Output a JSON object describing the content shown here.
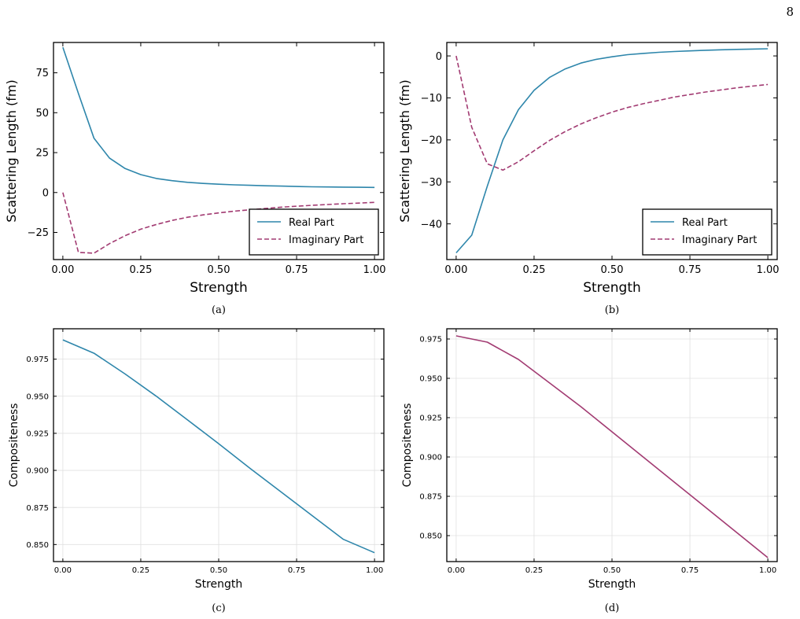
{
  "page_number": "8",
  "colors": {
    "real": "#2e86ab",
    "imag": "#a23b72",
    "grid": "#e0e0e0",
    "frame": "#000000"
  },
  "chart_data": [
    {
      "panel": "a",
      "caption": "(a)",
      "type": "line",
      "xlabel": "Strength",
      "ylabel": "Scattering Length (fm)",
      "xlim": [
        -0.03,
        1.03
      ],
      "ylim": [
        -42,
        94
      ],
      "xticks": [
        0.0,
        0.25,
        0.5,
        0.75,
        1.0
      ],
      "xtick_labels": [
        "0.00",
        "0.25",
        "0.50",
        "0.75",
        "1.00"
      ],
      "yticks": [
        -25,
        0,
        25,
        50,
        75
      ],
      "ytick_labels": [
        "−25",
        "0",
        "25",
        "50",
        "75"
      ],
      "grid": false,
      "legend": "lower-right",
      "x": [
        0.0,
        0.05,
        0.1,
        0.15,
        0.2,
        0.25,
        0.3,
        0.35,
        0.4,
        0.45,
        0.5,
        0.55,
        0.6,
        0.65,
        0.7,
        0.75,
        0.8,
        0.85,
        0.9,
        0.95,
        1.0
      ],
      "series": [
        {
          "name": "Real Part",
          "style": "solid",
          "color": "#2e86ab",
          "values": [
            91,
            62,
            34,
            21.5,
            15,
            11.2,
            8.8,
            7.4,
            6.4,
            5.7,
            5.2,
            4.8,
            4.5,
            4.2,
            4.0,
            3.8,
            3.6,
            3.5,
            3.4,
            3.3,
            3.2
          ]
        },
        {
          "name": "Imaginary Part",
          "style": "dashed",
          "color": "#a23b72",
          "values": [
            0,
            -37.5,
            -38,
            -32,
            -27,
            -23,
            -20,
            -17.5,
            -15.5,
            -14,
            -12.8,
            -11.7,
            -10.8,
            -10,
            -9.2,
            -8.6,
            -8.0,
            -7.5,
            -7.0,
            -6.6,
            -6.2
          ]
        }
      ]
    },
    {
      "panel": "b",
      "caption": "(b)",
      "type": "line",
      "xlabel": "Strength",
      "ylabel": "Scattering Length (fm)",
      "xlim": [
        -0.03,
        1.03
      ],
      "ylim": [
        -48.5,
        3.2
      ],
      "xticks": [
        0.0,
        0.25,
        0.5,
        0.75,
        1.0
      ],
      "xtick_labels": [
        "0.00",
        "0.25",
        "0.50",
        "0.75",
        "1.00"
      ],
      "yticks": [
        -40,
        -30,
        -20,
        -10,
        0
      ],
      "ytick_labels": [
        "−40",
        "−30",
        "−20",
        "−10",
        "0"
      ],
      "grid": false,
      "legend": "lower-right",
      "x": [
        0.0,
        0.05,
        0.1,
        0.15,
        0.2,
        0.25,
        0.3,
        0.35,
        0.4,
        0.45,
        0.5,
        0.55,
        0.6,
        0.65,
        0.7,
        0.75,
        0.8,
        0.85,
        0.9,
        0.95,
        1.0
      ],
      "series": [
        {
          "name": "Real Part",
          "style": "solid",
          "color": "#2e86ab",
          "values": [
            -46.9,
            -42.7,
            -31,
            -20,
            -12.8,
            -8.2,
            -5.1,
            -3.1,
            -1.7,
            -0.8,
            -0.2,
            0.3,
            0.6,
            0.85,
            1.05,
            1.2,
            1.35,
            1.45,
            1.55,
            1.62,
            1.7
          ]
        },
        {
          "name": "Imaginary Part",
          "style": "dashed",
          "color": "#a23b72",
          "values": [
            0,
            -17,
            -25.7,
            -27.2,
            -25.2,
            -22.6,
            -20.1,
            -18,
            -16.2,
            -14.7,
            -13.4,
            -12.3,
            -11.4,
            -10.6,
            -9.8,
            -9.2,
            -8.6,
            -8.1,
            -7.6,
            -7.2,
            -6.8
          ]
        }
      ]
    },
    {
      "panel": "c",
      "caption": "(c)",
      "type": "line",
      "xlabel": "Strength",
      "ylabel": "Compositeness",
      "xlim": [
        -0.03,
        1.03
      ],
      "ylim": [
        0.8385,
        0.9955
      ],
      "xticks": [
        0.0,
        0.25,
        0.5,
        0.75,
        1.0
      ],
      "xtick_labels": [
        "0.00",
        "0.25",
        "0.50",
        "0.75",
        "1.00"
      ],
      "yticks": [
        0.85,
        0.875,
        0.9,
        0.925,
        0.95,
        0.975
      ],
      "ytick_labels": [
        "0.850",
        "0.875",
        "0.900",
        "0.925",
        "0.950",
        "0.975"
      ],
      "grid": true,
      "x": [
        0.0,
        0.1,
        0.2,
        0.3,
        0.4,
        0.5,
        0.6,
        0.7,
        0.8,
        0.9,
        1.0
      ],
      "series": [
        {
          "style": "solid",
          "color": "#2e86ab",
          "values": [
            0.988,
            0.979,
            0.965,
            0.95,
            0.934,
            0.918,
            0.9015,
            0.8855,
            0.8695,
            0.8535,
            0.8445
          ]
        }
      ]
    },
    {
      "panel": "d",
      "caption": "(d)",
      "type": "line",
      "xlabel": "Strength",
      "ylabel": "Compositeness",
      "xlim": [
        -0.03,
        1.03
      ],
      "ylim": [
        0.8335,
        0.9815
      ],
      "xticks": [
        0.0,
        0.25,
        0.5,
        0.75,
        1.0
      ],
      "xtick_labels": [
        "0.00",
        "0.25",
        "0.50",
        "0.75",
        "1.00"
      ],
      "yticks": [
        0.85,
        0.875,
        0.9,
        0.925,
        0.95,
        0.975
      ],
      "ytick_labels": [
        "0.850",
        "0.875",
        "0.900",
        "0.925",
        "0.950",
        "0.975"
      ],
      "grid": true,
      "x": [
        0.0,
        0.1,
        0.2,
        0.3,
        0.4,
        0.5,
        0.6,
        0.7,
        0.8,
        0.9,
        1.0
      ],
      "series": [
        {
          "style": "solid",
          "color": "#a23b72",
          "values": [
            0.977,
            0.973,
            0.962,
            0.947,
            0.932,
            0.916,
            0.9,
            0.884,
            0.868,
            0.852,
            0.836
          ]
        }
      ]
    }
  ]
}
